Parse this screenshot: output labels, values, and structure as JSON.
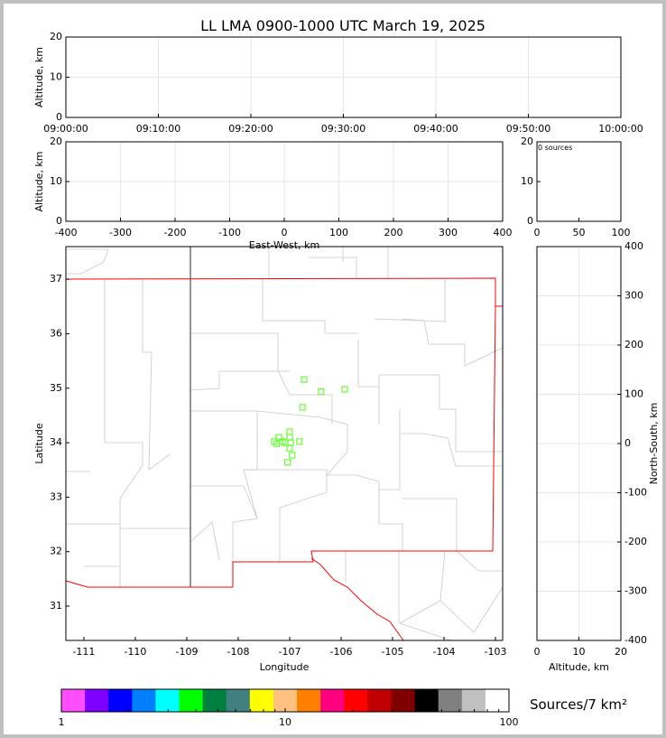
{
  "title": "LL LMA 0900-1000 UTC March 19, 2025",
  "colorbar_label": "Sources/7 km²",
  "colors": {
    "map_border": "#ff0000",
    "county_lines": "#c8c8c8",
    "station_marker": "#66ff33"
  },
  "chart_data": [
    {
      "panel": "time-height",
      "type": "scatter",
      "ylabel": "Altitude, km",
      "ylim": [
        0,
        20
      ],
      "yticks": [
        0,
        10,
        20
      ],
      "xlim": [
        "09:00:00",
        "10:00:00"
      ],
      "xticks": [
        "09:00:00",
        "09:10:00",
        "09:20:00",
        "09:30:00",
        "09:40:00",
        "09:50:00",
        "10:00:00"
      ],
      "grid": true,
      "points": []
    },
    {
      "panel": "east-west-altitude",
      "type": "scatter",
      "xlabel": "East-West, km",
      "ylabel": "Altitude, km",
      "xlim": [
        -400,
        400
      ],
      "xticks": [
        -400,
        -300,
        -200,
        -100,
        0,
        100,
        200,
        300,
        400
      ],
      "ylim": [
        0,
        20
      ],
      "yticks": [
        0,
        10,
        20
      ],
      "grid": true,
      "points": []
    },
    {
      "panel": "altitude-histogram",
      "type": "bar",
      "annotation": "0 sources",
      "xlim": [
        0,
        100
      ],
      "xticks": [
        0,
        50,
        100
      ],
      "ylim": [
        0,
        20
      ],
      "yticks": [
        0,
        10,
        20
      ],
      "grid": false,
      "values": []
    },
    {
      "panel": "plan-view",
      "type": "scatter",
      "xlabel": "Longitude",
      "ylabel": "Latitude",
      "xlim": [
        -111.35,
        -102.86
      ],
      "xticks": [
        -111,
        -110,
        -109,
        -108,
        -107,
        -106,
        -105,
        -104,
        -103
      ],
      "ylim": [
        30.37,
        37.6
      ],
      "yticks": [
        31,
        32,
        33,
        34,
        35,
        36,
        37
      ],
      "stations": [
        [
          -106.72,
          35.16
        ],
        [
          -106.39,
          34.94
        ],
        [
          -105.93,
          34.98
        ],
        [
          -106.75,
          34.65
        ],
        [
          -107.0,
          34.2
        ],
        [
          -107.21,
          34.1
        ],
        [
          -107.0,
          34.1
        ],
        [
          -107.3,
          34.02
        ],
        [
          -107.14,
          34.02
        ],
        [
          -107.25,
          33.98
        ],
        [
          -107.09,
          34.0
        ],
        [
          -106.98,
          34.0
        ],
        [
          -106.81,
          34.02
        ],
        [
          -107.0,
          33.9
        ],
        [
          -106.95,
          33.77
        ],
        [
          -107.04,
          33.64
        ]
      ],
      "points": []
    },
    {
      "panel": "north-south-altitude",
      "type": "scatter",
      "xlabel": "Altitude, km",
      "ylabel": "North-South, km",
      "xlim": [
        0,
        20
      ],
      "xticks": [
        0,
        10,
        20
      ],
      "ylim": [
        -400,
        400
      ],
      "yticks": [
        -400,
        -300,
        -200,
        -100,
        0,
        100,
        200,
        300,
        400
      ],
      "grid": true,
      "points": []
    },
    {
      "panel": "colorbar",
      "type": "colorbar",
      "scale": "log",
      "range": [
        1,
        100
      ],
      "ticklabels": [
        "1",
        "10",
        "100"
      ],
      "colors": [
        "#ff4dff",
        "#7f00ff",
        "#0000ff",
        "#0080ff",
        "#00ffff",
        "#00ff00",
        "#00803f",
        "#408080",
        "#ffff00",
        "#ffc080",
        "#ff8000",
        "#ff0080",
        "#ff0000",
        "#c00000",
        "#800000",
        "#000000",
        "#808080",
        "#c0c0c0",
        "#ffffff"
      ]
    }
  ]
}
